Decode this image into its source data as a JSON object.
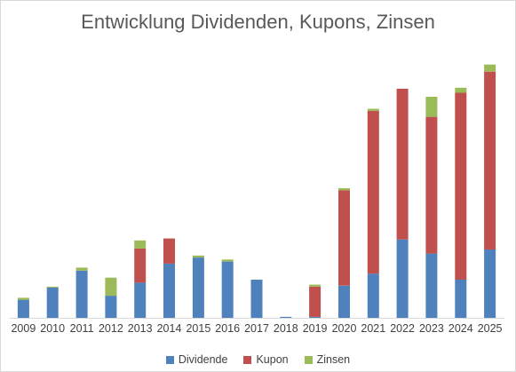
{
  "chart_data": {
    "type": "bar",
    "stacked": true,
    "title": "Entwicklung Dividenden, Kupons, Zinsen",
    "xlabel": "",
    "ylabel": "",
    "ylim": [
      0,
      250
    ],
    "grid": false,
    "legend_position": "bottom",
    "categories": [
      "2009",
      "2010",
      "2011",
      "2012",
      "2013",
      "2014",
      "2015",
      "2016",
      "2017",
      "2018",
      "2019",
      "2020",
      "2021",
      "2022",
      "2023",
      "2024",
      "2025"
    ],
    "series": [
      {
        "name": "Dividende",
        "color": "#4f81bd",
        "values": [
          18,
          30,
          47,
          22,
          35,
          54,
          60,
          56,
          38,
          1,
          1,
          32,
          44,
          78,
          64,
          38,
          68
        ]
      },
      {
        "name": "Kupon",
        "color": "#c0504d",
        "values": [
          0,
          0,
          0,
          0,
          34,
          25,
          0,
          0,
          0,
          0,
          30,
          95,
          162,
          150,
          136,
          186,
          177
        ]
      },
      {
        "name": "Zinsen",
        "color": "#9bbb59",
        "values": [
          2,
          1,
          3,
          18,
          8,
          0,
          2,
          2,
          0,
          0,
          2,
          2,
          2,
          0,
          20,
          5,
          7
        ]
      }
    ]
  }
}
